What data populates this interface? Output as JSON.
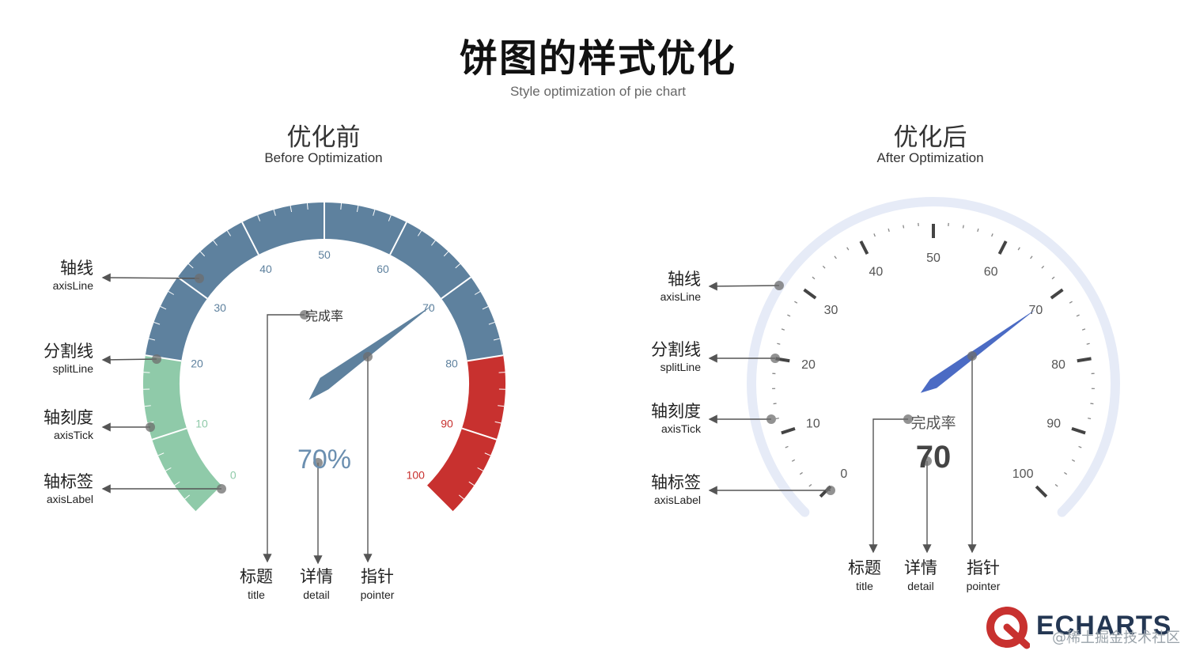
{
  "header": {
    "title": "饼图的样式优化",
    "subtitle": "Style optimization of pie chart"
  },
  "before": {
    "title_cn": "优化前",
    "title_en": "Before Optimization",
    "gauge_title": "完成率",
    "detail": "70%",
    "value": 70,
    "min": 0,
    "max": 100,
    "ticks": [
      "0",
      "10",
      "20",
      "30",
      "40",
      "50",
      "60",
      "70",
      "80",
      "90",
      "100"
    ],
    "colors": {
      "low": "#8fcaa9",
      "mid": "#5e819e",
      "high": "#c8312f"
    },
    "color_stops": [
      0.2,
      0.8
    ]
  },
  "after": {
    "title_cn": "优化后",
    "title_en": "After Optimization",
    "gauge_title": "完成率",
    "detail": "70",
    "value": 70,
    "min": 0,
    "max": 100,
    "ticks": [
      "0",
      "10",
      "20",
      "30",
      "40",
      "50",
      "60",
      "70",
      "80",
      "90",
      "100"
    ],
    "colors": {
      "axis": "#e6ebf7",
      "pointer": "#4b6bc4",
      "tick": "#666666"
    }
  },
  "annotations_left": [
    {
      "cn": "轴线",
      "en": "axisLine"
    },
    {
      "cn": "分割线",
      "en": "splitLine"
    },
    {
      "cn": "轴刻度",
      "en": "axisTick"
    },
    {
      "cn": "轴标签",
      "en": "axisLabel"
    }
  ],
  "annotations_bottom": [
    {
      "cn": "标题",
      "en": "title"
    },
    {
      "cn": "详情",
      "en": "detail"
    },
    {
      "cn": "指针",
      "en": "pointer"
    }
  ],
  "brand": {
    "logo": "ECHARTS",
    "logo_icon": "echarts-logo-icon",
    "watermark": "@稀土掘金技术社区"
  }
}
